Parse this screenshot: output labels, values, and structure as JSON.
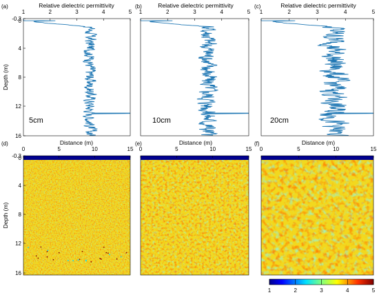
{
  "chart_data": [
    {
      "type": "line",
      "panel_label": "(a)",
      "title": "Relative dielectric permittivity",
      "xlabel": "Relative dielectric permittivity",
      "ylabel": "Depth (m)",
      "xlim": [
        1,
        5
      ],
      "ylim": [
        -0.3,
        16
      ],
      "x_ticks": [
        "1",
        "2",
        "3",
        "4",
        "5"
      ],
      "y_ticks": [
        "-0.3",
        "0",
        "4",
        "8",
        "12",
        "16"
      ],
      "annotation": "5cm",
      "grid": false,
      "profile": {
        "surface_depth": 0,
        "surface_value": 1,
        "mean": 3.5,
        "amplitude": 0.22,
        "spike_depth": 12.9,
        "spike_value": 5
      }
    },
    {
      "type": "line",
      "panel_label": "(b)",
      "title": "Relative dielectric permittivity",
      "xlabel": "Relative dielectric permittivity",
      "ylabel": "",
      "xlim": [
        1,
        5
      ],
      "ylim": [
        -0.3,
        16
      ],
      "x_ticks": [
        "1",
        "2",
        "3",
        "4",
        "5"
      ],
      "y_ticks": [],
      "annotation": "10cm",
      "grid": false,
      "profile": {
        "surface_depth": 0,
        "surface_value": 1,
        "mean": 3.5,
        "amplitude": 0.35,
        "spike_depth": 12.9,
        "spike_value": 5
      }
    },
    {
      "type": "line",
      "panel_label": "(c)",
      "title": "Relative dielectric permittivity",
      "xlabel": "Relative dielectric permittivity",
      "ylabel": "",
      "xlim": [
        1,
        5
      ],
      "ylim": [
        -0.3,
        16
      ],
      "x_ticks": [
        "1",
        "2",
        "3",
        "4",
        "5"
      ],
      "y_ticks": [],
      "annotation": "20cm",
      "grid": false,
      "profile": {
        "surface_depth": 0,
        "surface_value": 1,
        "mean": 3.6,
        "amplitude": 0.45,
        "spike_depth": 12.9,
        "spike_value": 5
      }
    },
    {
      "type": "heatmap",
      "panel_label": "(d)",
      "title": "Distance (m)",
      "xlabel": "Distance (m)",
      "ylabel": "Depth (m)",
      "xlim": [
        0,
        15
      ],
      "ylim": [
        -0.3,
        16
      ],
      "x_ticks": [
        "0",
        "5",
        "10",
        "15"
      ],
      "y_ticks": [
        "-0.3",
        "0",
        "4",
        "8",
        "12",
        "16"
      ],
      "value_range": [
        1,
        5
      ],
      "surface_layer": {
        "from_depth": -0.3,
        "to_depth": 0,
        "value": 1
      },
      "grid": false
    },
    {
      "type": "heatmap",
      "panel_label": "(e)",
      "title": "Distance (m)",
      "xlabel": "Distance (m)",
      "ylabel": "",
      "xlim": [
        0,
        15
      ],
      "ylim": [
        -0.3,
        16
      ],
      "x_ticks": [
        "0",
        "5",
        "10",
        "15"
      ],
      "y_ticks": [],
      "value_range": [
        1,
        5
      ],
      "surface_layer": {
        "from_depth": -0.3,
        "to_depth": 0,
        "value": 1
      },
      "grid": false
    },
    {
      "type": "heatmap",
      "panel_label": "(f)",
      "title": "Distance (m)",
      "xlabel": "Distance (m)",
      "ylabel": "",
      "xlim": [
        0,
        15
      ],
      "ylim": [
        -0.3,
        16
      ],
      "x_ticks": [
        "0",
        "5",
        "10",
        "15"
      ],
      "y_ticks": [],
      "value_range": [
        1,
        5
      ],
      "surface_layer": {
        "from_depth": -0.3,
        "to_depth": 0,
        "value": 1
      },
      "grid": false
    }
  ],
  "colorbar": {
    "ticks": [
      "1",
      "2",
      "3",
      "4",
      "5"
    ],
    "range": [
      1,
      5
    ],
    "colors": [
      "#00008f",
      "#0040ff",
      "#00e0ff",
      "#7fff7f",
      "#ffff00",
      "#ff8000",
      "#c00000",
      "#800000"
    ]
  }
}
